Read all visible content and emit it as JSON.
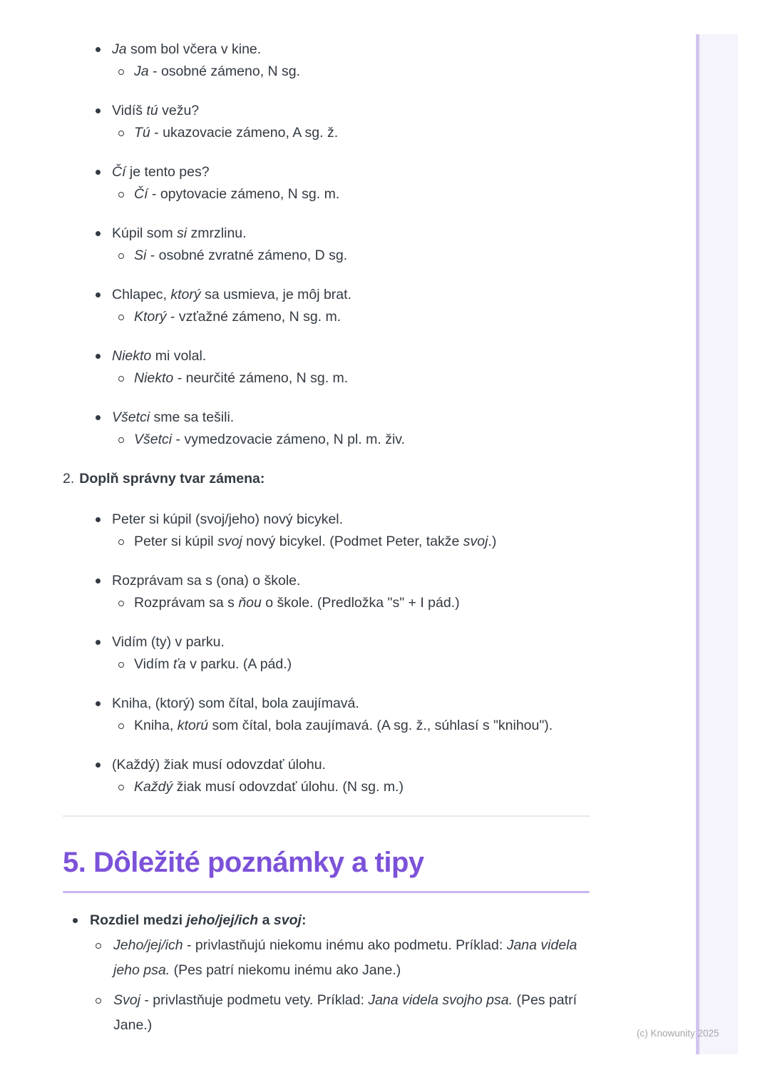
{
  "page": {
    "colors": {
      "text": "#333a42",
      "accent": "#7c52d9",
      "underline": "#c7b6ef",
      "divider": "#e9e8ec",
      "stripe-fill": "#f5f3fb",
      "stripe-border": "#d2c6f0",
      "footer": "#a6a5ab"
    }
  },
  "exercise2": {
    "number": "2.",
    "title": "Doplň správny tvar zámena:"
  },
  "section": {
    "heading": "5. Dôležité poznámky a tipy"
  },
  "footer": {
    "text": "(c) Knowunity 2025"
  },
  "lists": {
    "exercise1": {
      "items": [
        {
          "main": [
            [
              "i",
              "Ja"
            ],
            [
              "r",
              " som bol včera v kine."
            ]
          ],
          "subs": [
            [
              [
                "i",
                "Ja"
              ],
              [
                "r",
                " - osobné zámeno, N sg."
              ]
            ]
          ]
        },
        {
          "main": [
            [
              "r",
              "Vidíš "
            ],
            [
              "i",
              "tú"
            ],
            [
              "r",
              " vežu?"
            ]
          ],
          "subs": [
            [
              [
                "i",
                "Tú"
              ],
              [
                "r",
                " - ukazovacie zámeno, A sg. ž."
              ]
            ]
          ]
        },
        {
          "main": [
            [
              "i",
              "Čí"
            ],
            [
              "r",
              " je tento pes?"
            ]
          ],
          "subs": [
            [
              [
                "i",
                "Čí"
              ],
              [
                "r",
                " - opytovacie zámeno, N sg. m."
              ]
            ]
          ]
        },
        {
          "main": [
            [
              "r",
              "Kúpil som "
            ],
            [
              "i",
              "si"
            ],
            [
              "r",
              " zmrzlinu."
            ]
          ],
          "subs": [
            [
              [
                "i",
                "Si"
              ],
              [
                "r",
                " - osobné zvratné zámeno, D sg."
              ]
            ]
          ]
        },
        {
          "main": [
            [
              "r",
              "Chlapec, "
            ],
            [
              "i",
              "ktorý"
            ],
            [
              "r",
              " sa usmieva, je môj brat."
            ]
          ],
          "subs": [
            [
              [
                "i",
                "Ktorý"
              ],
              [
                "r",
                " - vzťažné zámeno, N sg. m."
              ]
            ]
          ]
        },
        {
          "main": [
            [
              "i",
              "Niekto"
            ],
            [
              "r",
              " mi volal."
            ]
          ],
          "subs": [
            [
              [
                "i",
                "Niekto"
              ],
              [
                "r",
                " - neurčité zámeno, N sg. m."
              ]
            ]
          ]
        },
        {
          "main": [
            [
              "i",
              "Všetci"
            ],
            [
              "r",
              " sme sa tešili."
            ]
          ],
          "subs": [
            [
              [
                "i",
                "Všetci"
              ],
              [
                "r",
                " - vymedzovacie zámeno, N pl. m. živ."
              ]
            ]
          ]
        }
      ]
    },
    "exercise2": {
      "items": [
        {
          "main": [
            [
              "r",
              "Peter si kúpil (svoj/jeho) nový bicykel."
            ]
          ],
          "subs": [
            [
              [
                "r",
                "Peter si kúpil "
              ],
              [
                "i",
                "svoj"
              ],
              [
                "r",
                " nový bicykel. (Podmet Peter, takže "
              ],
              [
                "i",
                "svoj"
              ],
              [
                "r",
                ".)"
              ]
            ]
          ]
        },
        {
          "main": [
            [
              "r",
              "Rozprávam sa s (ona) o škole."
            ]
          ],
          "subs": [
            [
              [
                "r",
                "Rozprávam sa s "
              ],
              [
                "i",
                "ňou"
              ],
              [
                "r",
                " o škole. (Predložka \"s\" + I pád.)"
              ]
            ]
          ]
        },
        {
          "main": [
            [
              "r",
              "Vidím (ty) v parku."
            ]
          ],
          "subs": [
            [
              [
                "r",
                "Vidím "
              ],
              [
                "i",
                "ťa"
              ],
              [
                "r",
                " v parku. (A pád.)"
              ]
            ]
          ]
        },
        {
          "main": [
            [
              "r",
              "Kniha, (ktorý) som čítal, bola zaujímavá."
            ]
          ],
          "subs": [
            [
              [
                "r",
                "Kniha, "
              ],
              [
                "i",
                "ktorú"
              ],
              [
                "r",
                " som čítal, bola zaujímavá. (A sg. ž., súhlasí s \"knihou\")."
              ]
            ]
          ]
        },
        {
          "main": [
            [
              "r",
              "(Každý) žiak musí odovzdať úlohu."
            ]
          ],
          "subs": [
            [
              [
                "i",
                "Každý"
              ],
              [
                "r",
                " žiak musí odovzdať úlohu. (N sg. m.)"
              ]
            ]
          ]
        }
      ]
    },
    "notes": {
      "items": [
        {
          "main": [
            [
              "b",
              "Rozdiel medzi "
            ],
            [
              "bi",
              "jeho/jej/ich"
            ],
            [
              "b",
              " a "
            ],
            [
              "bi",
              "svoj"
            ],
            [
              "b",
              ":"
            ]
          ],
          "subs": [
            [
              [
                "i",
                "Jeho/jej/ich"
              ],
              [
                "r",
                " - privlastňujú niekomu inému ako podmetu. Príklad: "
              ],
              [
                "i",
                "Jana videla jeho psa."
              ],
              [
                "r",
                " (Pes patrí niekomu inému ako Jane.)"
              ]
            ],
            [
              [
                "i",
                "Svoj"
              ],
              [
                "r",
                " - privlastňuje podmetu vety. Príklad: "
              ],
              [
                "i",
                "Jana videla svojho psa."
              ],
              [
                "r",
                " (Pes patrí Jane.)"
              ]
            ]
          ]
        }
      ]
    }
  }
}
